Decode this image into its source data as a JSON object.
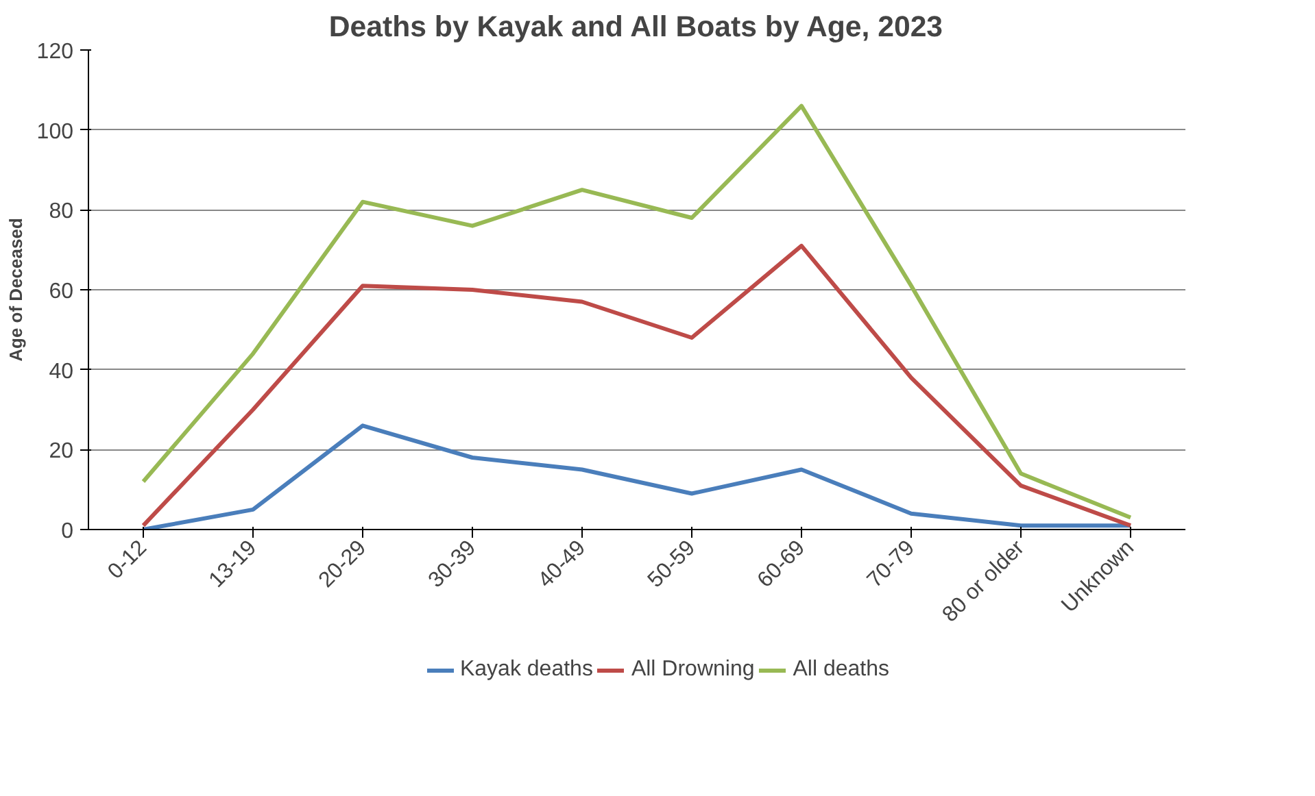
{
  "chart_data": {
    "type": "line",
    "title": "Deaths by Kayak and All Boats by Age, 2023",
    "ylabel": "Age of Deceased",
    "categories": [
      "0-12",
      "13-19",
      "20-29",
      "30-39",
      "40-49",
      "50-59",
      "60-69",
      "70-79",
      "80 or older",
      "Unknown"
    ],
    "series": [
      {
        "name": "Kayak deaths",
        "color": "#4a7ebb",
        "values": [
          0,
          5,
          26,
          18,
          15,
          9,
          15,
          4,
          1,
          1
        ]
      },
      {
        "name": "All Drowning",
        "color": "#be4b48",
        "values": [
          1,
          30,
          61,
          60,
          57,
          48,
          71,
          38,
          11,
          1
        ]
      },
      {
        "name": "All deaths",
        "color": "#98b954",
        "values": [
          12,
          44,
          82,
          76,
          85,
          78,
          106,
          61,
          14,
          3
        ]
      }
    ],
    "ylim": [
      0,
      120
    ],
    "yticks": [
      0,
      20,
      40,
      60,
      80,
      100,
      120
    ],
    "grid": "y",
    "legend": "bottom",
    "marker": "none",
    "line_style": "solid"
  }
}
